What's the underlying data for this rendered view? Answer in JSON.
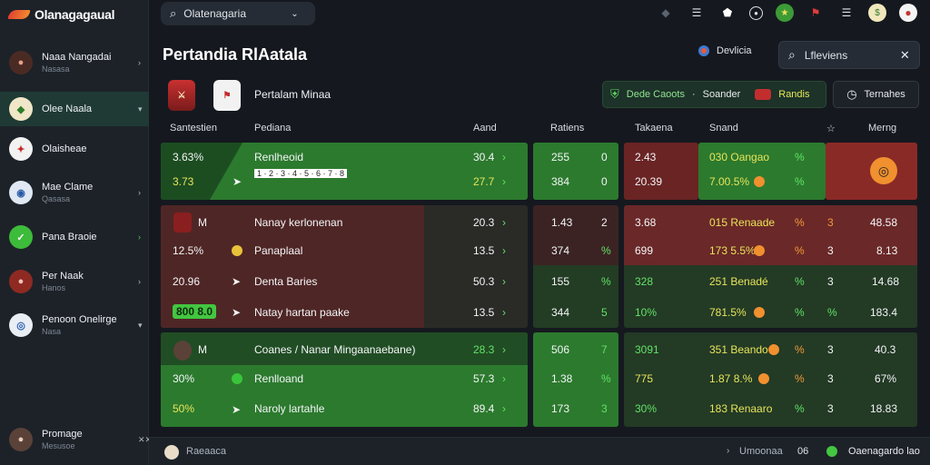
{
  "app": {
    "title": "Olanagagaual"
  },
  "search_top": {
    "value": "Olatenagaria"
  },
  "sidebar": {
    "items": [
      {
        "label": "Naaa Nangadai",
        "sub": "Nasasa",
        "chev": "›"
      },
      {
        "label": "Olee Naala",
        "sub": "",
        "chev": "▾"
      },
      {
        "label": "Olaisheae",
        "sub": "",
        "chev": ""
      },
      {
        "label": "Mae Clame",
        "sub": "Qasasa",
        "chev": "›"
      },
      {
        "label": "Pana Braoie",
        "sub": "",
        "chev": "›"
      },
      {
        "label": "Per Naak",
        "sub": "Hanos",
        "chev": "›"
      },
      {
        "label": "Penoon Onelirge",
        "sub": "Nasa",
        "chev": "▾"
      }
    ],
    "user": {
      "label": "Promage",
      "sub": "Mesusoe",
      "icon_text": "✕✕"
    }
  },
  "header": {
    "title": "Pertandia RlAatala",
    "dev_label": "Devlicia",
    "search_value": "Lfleviens",
    "match_name": "Pertalam Minaa",
    "promo": {
      "a": "Dede Caoots",
      "b": "Soander",
      "c": "Randis"
    },
    "time_label": "Ternahes"
  },
  "columns": {
    "selection": "Santestien",
    "pediana": "Pediana",
    "aand": "Aand",
    "ratiens": "Ratiens",
    "takens": "Takaena",
    "snand": "Snand",
    "star": "☆",
    "merng": "Merng"
  },
  "rows": [
    {
      "group": "A",
      "left_a": "3.63%",
      "left_b": "3.73",
      "name": "Renlheoid",
      "subtag": "1  ·  2  ·  3  ·  4  ·  5  ·  6  ·  7  ·  8",
      "aand_a": "30.4",
      "aand_b": "27.7",
      "r1_a": "255",
      "r1_b": "384",
      "r2_a": "0",
      "r2_b": "0",
      "t_a": "2.43",
      "t_b": "20.39",
      "s_a": "030 Oangao",
      "s_b": "7.00.5%",
      "p_a": "%",
      "p_b": "%",
      "m": "◎"
    }
  ],
  "block_b": {
    "lines": [
      {
        "tag": "M",
        "l": "",
        "name": "Nanay kerlonenan",
        "aand": "20.3",
        "r1": "1.43",
        "r2": "2",
        "t": "3.68",
        "s": "015 Renaade",
        "p": "%",
        "q": "3",
        "m": "48.58"
      },
      {
        "tag": "",
        "l": "12.5%",
        "name": "Panaplaal",
        "aand": "13.5",
        "r1": "374",
        "r2": "%",
        "t": "699",
        "s": "173 5.5%",
        "p": "%",
        "q": "3",
        "m": "8.13"
      },
      {
        "tag": "",
        "l": "20.96",
        "name": "Denta Baries",
        "aand": "50.3",
        "r1": "155",
        "r2": "%",
        "t": "328",
        "s": "251 Benadé",
        "p": "%",
        "q": "3",
        "m": "14.68"
      },
      {
        "tag": "",
        "l": "800  8.0",
        "name": "Natay hartan paake",
        "aand": "13.5",
        "r1": "344",
        "r2": "5",
        "t": "10%",
        "s": "781.5%",
        "p": "%",
        "q": "%",
        "m": "183.4"
      }
    ]
  },
  "block_c": {
    "lines": [
      {
        "tag": "M",
        "l": "",
        "name": "Coanes / Nanar Mingaanaebane)",
        "aand": "28.3",
        "r1": "506",
        "r2": "7",
        "t": "3091",
        "s": "351 Beando",
        "p": "%",
        "q": "3",
        "m": "40.3"
      },
      {
        "tag": "",
        "l": "30%",
        "name": "Renlloand",
        "aand": "57.3",
        "r1": "1.38",
        "r2": "%",
        "t": "775",
        "s": "1.87 8.%",
        "p": "%",
        "q": "3",
        "m": "67%"
      },
      {
        "tag": "",
        "l": "50%",
        "name": "Naroly lartahle",
        "aand": "89.4",
        "r1": "173",
        "r2": "3",
        "t": "30%",
        "s": "183 Renaaro",
        "p": "%",
        "q": "3",
        "m": "18.83"
      }
    ]
  },
  "bottom": {
    "left": "Raeaaca",
    "right_a": "Umoonaa",
    "right_b": "06",
    "right_c": "Oaenagardo lao"
  },
  "colors": {
    "green_panel": "#2f7a2f",
    "red_panel": "#6a2424",
    "dark_green": "#1f3a24",
    "dark_red": "#3a1f1f"
  }
}
